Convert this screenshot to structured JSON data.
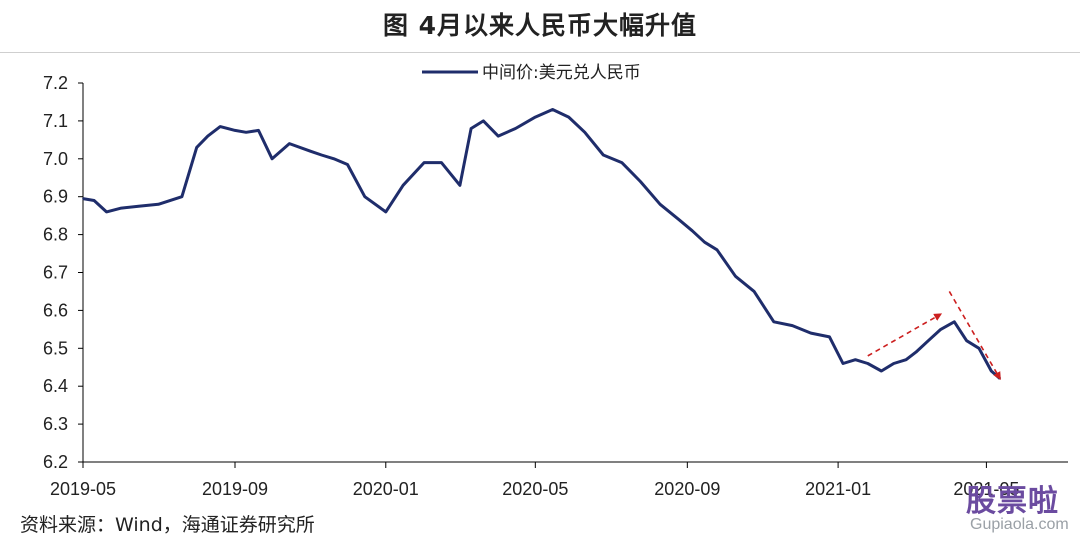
{
  "title": "图  4月以来人民币大幅升值",
  "source": "资料来源：Wind，海通证券研究所",
  "watermark": {
    "brand": "股票啦",
    "domain": "Gupiaola.com"
  },
  "colors": {
    "series": "#1f2d6b",
    "annotation": "#cc1f1f"
  },
  "chart_data": {
    "type": "line",
    "title": "",
    "xlabel": "",
    "ylabel": "",
    "ylim": [
      6.2,
      7.2
    ],
    "yticks": [
      6.2,
      6.3,
      6.4,
      6.5,
      6.6,
      6.7,
      6.8,
      6.9,
      7.0,
      7.1,
      7.2
    ],
    "ytick_labels": [
      "6.2",
      "6.3",
      "6.4",
      "6.5",
      "6.6",
      "6.7",
      "6.8",
      "6.9",
      "7.0",
      "7.1",
      "7.2"
    ],
    "xticks": [
      "2019-05",
      "2019-09",
      "2020-01",
      "2020-05",
      "2020-09",
      "2021-01",
      "2021-05"
    ],
    "grid": false,
    "legend": {
      "position": "top-center",
      "entries": [
        "中间价:美元兑人民币"
      ]
    },
    "series": [
      {
        "name": "中间价:美元兑人民币",
        "x": [
          "2019-05-01",
          "2019-05-10",
          "2019-05-20",
          "2019-06-01",
          "2019-06-15",
          "2019-07-01",
          "2019-07-20",
          "2019-08-01",
          "2019-08-10",
          "2019-08-20",
          "2019-09-01",
          "2019-09-10",
          "2019-09-20",
          "2019-10-01",
          "2019-10-15",
          "2019-11-01",
          "2019-11-10",
          "2019-11-20",
          "2019-12-01",
          "2019-12-15",
          "2020-01-01",
          "2020-01-15",
          "2020-02-01",
          "2020-02-15",
          "2020-03-01",
          "2020-03-10",
          "2020-03-20",
          "2020-04-01",
          "2020-04-15",
          "2020-05-01",
          "2020-05-15",
          "2020-05-28",
          "2020-06-10",
          "2020-06-25",
          "2020-07-10",
          "2020-07-25",
          "2020-08-10",
          "2020-08-25",
          "2020-09-05",
          "2020-09-15",
          "2020-09-25",
          "2020-10-10",
          "2020-10-25",
          "2020-11-10",
          "2020-11-25",
          "2020-12-10",
          "2020-12-25",
          "2021-01-05",
          "2021-01-15",
          "2021-01-25",
          "2021-02-05",
          "2021-02-15",
          "2021-02-25",
          "2021-03-05",
          "2021-03-15",
          "2021-03-25",
          "2021-04-05",
          "2021-04-15",
          "2021-04-25",
          "2021-05-05",
          "2021-05-12"
        ],
        "values": [
          6.895,
          6.89,
          6.86,
          6.87,
          6.875,
          6.88,
          6.9,
          7.03,
          7.06,
          7.085,
          7.075,
          7.07,
          7.075,
          7.0,
          7.04,
          7.02,
          7.01,
          7.0,
          6.985,
          6.9,
          6.86,
          6.93,
          6.99,
          6.99,
          6.93,
          7.08,
          7.1,
          7.06,
          7.08,
          7.11,
          7.13,
          7.11,
          7.07,
          7.01,
          6.99,
          6.94,
          6.88,
          6.84,
          6.81,
          6.78,
          6.76,
          6.69,
          6.65,
          6.57,
          6.56,
          6.54,
          6.53,
          6.46,
          6.47,
          6.46,
          6.44,
          6.46,
          6.47,
          6.49,
          6.52,
          6.55,
          6.57,
          6.52,
          6.5,
          6.44,
          6.42
        ]
      }
    ],
    "annotations": [
      {
        "type": "arrow",
        "from": [
          "2021-01-25",
          6.48
        ],
        "to": [
          "2021-03-25",
          6.59
        ]
      },
      {
        "type": "arrow",
        "from": [
          "2021-04-01",
          6.65
        ],
        "to": [
          "2021-05-12",
          6.42
        ]
      }
    ]
  }
}
